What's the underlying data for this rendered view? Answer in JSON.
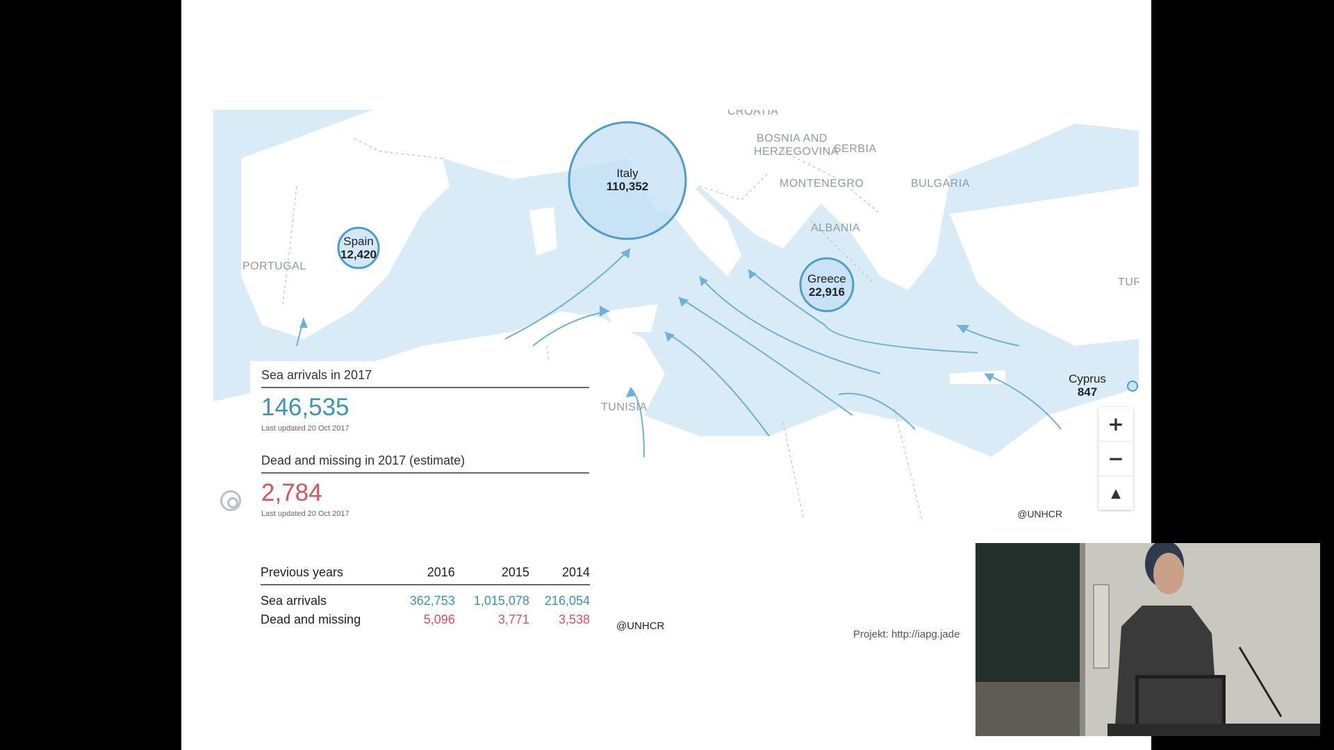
{
  "map": {
    "countries": [
      {
        "id": "portugal",
        "label": "PORTUGAL"
      },
      {
        "id": "bosnia",
        "label": "BOSNIA AND"
      },
      {
        "id": "bosnia2",
        "label": "HERZEGOVINA"
      },
      {
        "id": "serbia",
        "label": "SERBIA"
      },
      {
        "id": "montenegro",
        "label": "MONTENEGRO"
      },
      {
        "id": "bulgaria",
        "label": "BULGARIA"
      },
      {
        "id": "albania",
        "label": "ALBANIA"
      },
      {
        "id": "tunisia",
        "label": "TUNISIA"
      },
      {
        "id": "croatia",
        "label": "CROATIA"
      },
      {
        "id": "turkey",
        "label": "TUR"
      }
    ],
    "bubbles": [
      {
        "country": "Italy",
        "value": "110,352"
      },
      {
        "country": "Spain",
        "value": "12,420"
      },
      {
        "country": "Greece",
        "value": "22,916"
      },
      {
        "country": "Cyprus",
        "value": "847"
      }
    ],
    "zoom_in": "+",
    "zoom_out": "−",
    "north": "▲",
    "credit": "@UNHCR"
  },
  "panel": {
    "arrivals_heading": "Sea arrivals in 2017",
    "arrivals_value": "146,535",
    "arrivals_updated": "Last updated 20 Oct 2017",
    "dead_heading": "Dead and missing in 2017 (estimate)",
    "dead_value": "2,784",
    "dead_updated": "Last updated 20 Oct 2017"
  },
  "previous_years": {
    "header": [
      "Previous years",
      "2016",
      "2015",
      "2014"
    ],
    "rows": [
      {
        "label": "Sea arrivals",
        "values": [
          "362,753",
          "1,015,078",
          "216,054"
        ]
      },
      {
        "label": "Dead and missing",
        "values": [
          "5,096",
          "3,771",
          "3,538"
        ]
      }
    ]
  },
  "footer": {
    "credit": "@UNHCR",
    "project": "Projekt: http://iapg.jade"
  },
  "colors": {
    "sea": "#d6e9f6",
    "bubble_fill": "#c3e0f5",
    "bubble_stroke": "#4f9cca",
    "arrow": "#6fb0d6",
    "blue_number": "#3b93b8",
    "red_number": "#d9535c"
  }
}
